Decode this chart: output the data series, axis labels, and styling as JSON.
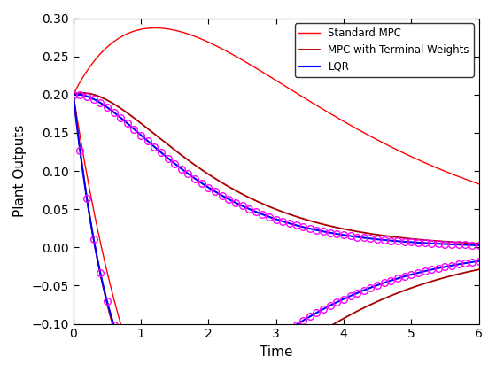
{
  "title": "",
  "xlabel": "Time",
  "ylabel": "Plant Outputs",
  "xlim": [
    0,
    6
  ],
  "ylim": [
    -0.1,
    0.3
  ],
  "yticks": [
    -0.1,
    -0.05,
    0.0,
    0.05,
    0.1,
    0.15,
    0.2,
    0.25,
    0.3
  ],
  "xticks": [
    0,
    1,
    2,
    3,
    4,
    5,
    6
  ],
  "legend": [
    "Standard MPC",
    "MPC with Terminal Weights",
    "LQR"
  ],
  "std_mpc_color": "#FF0000",
  "term_mpc_color": "#AA0000",
  "lqr_color": "#0000FF",
  "lqr_marker_color": "#FF00FF",
  "figsize": [
    5.6,
    4.2
  ],
  "dpi": 100
}
